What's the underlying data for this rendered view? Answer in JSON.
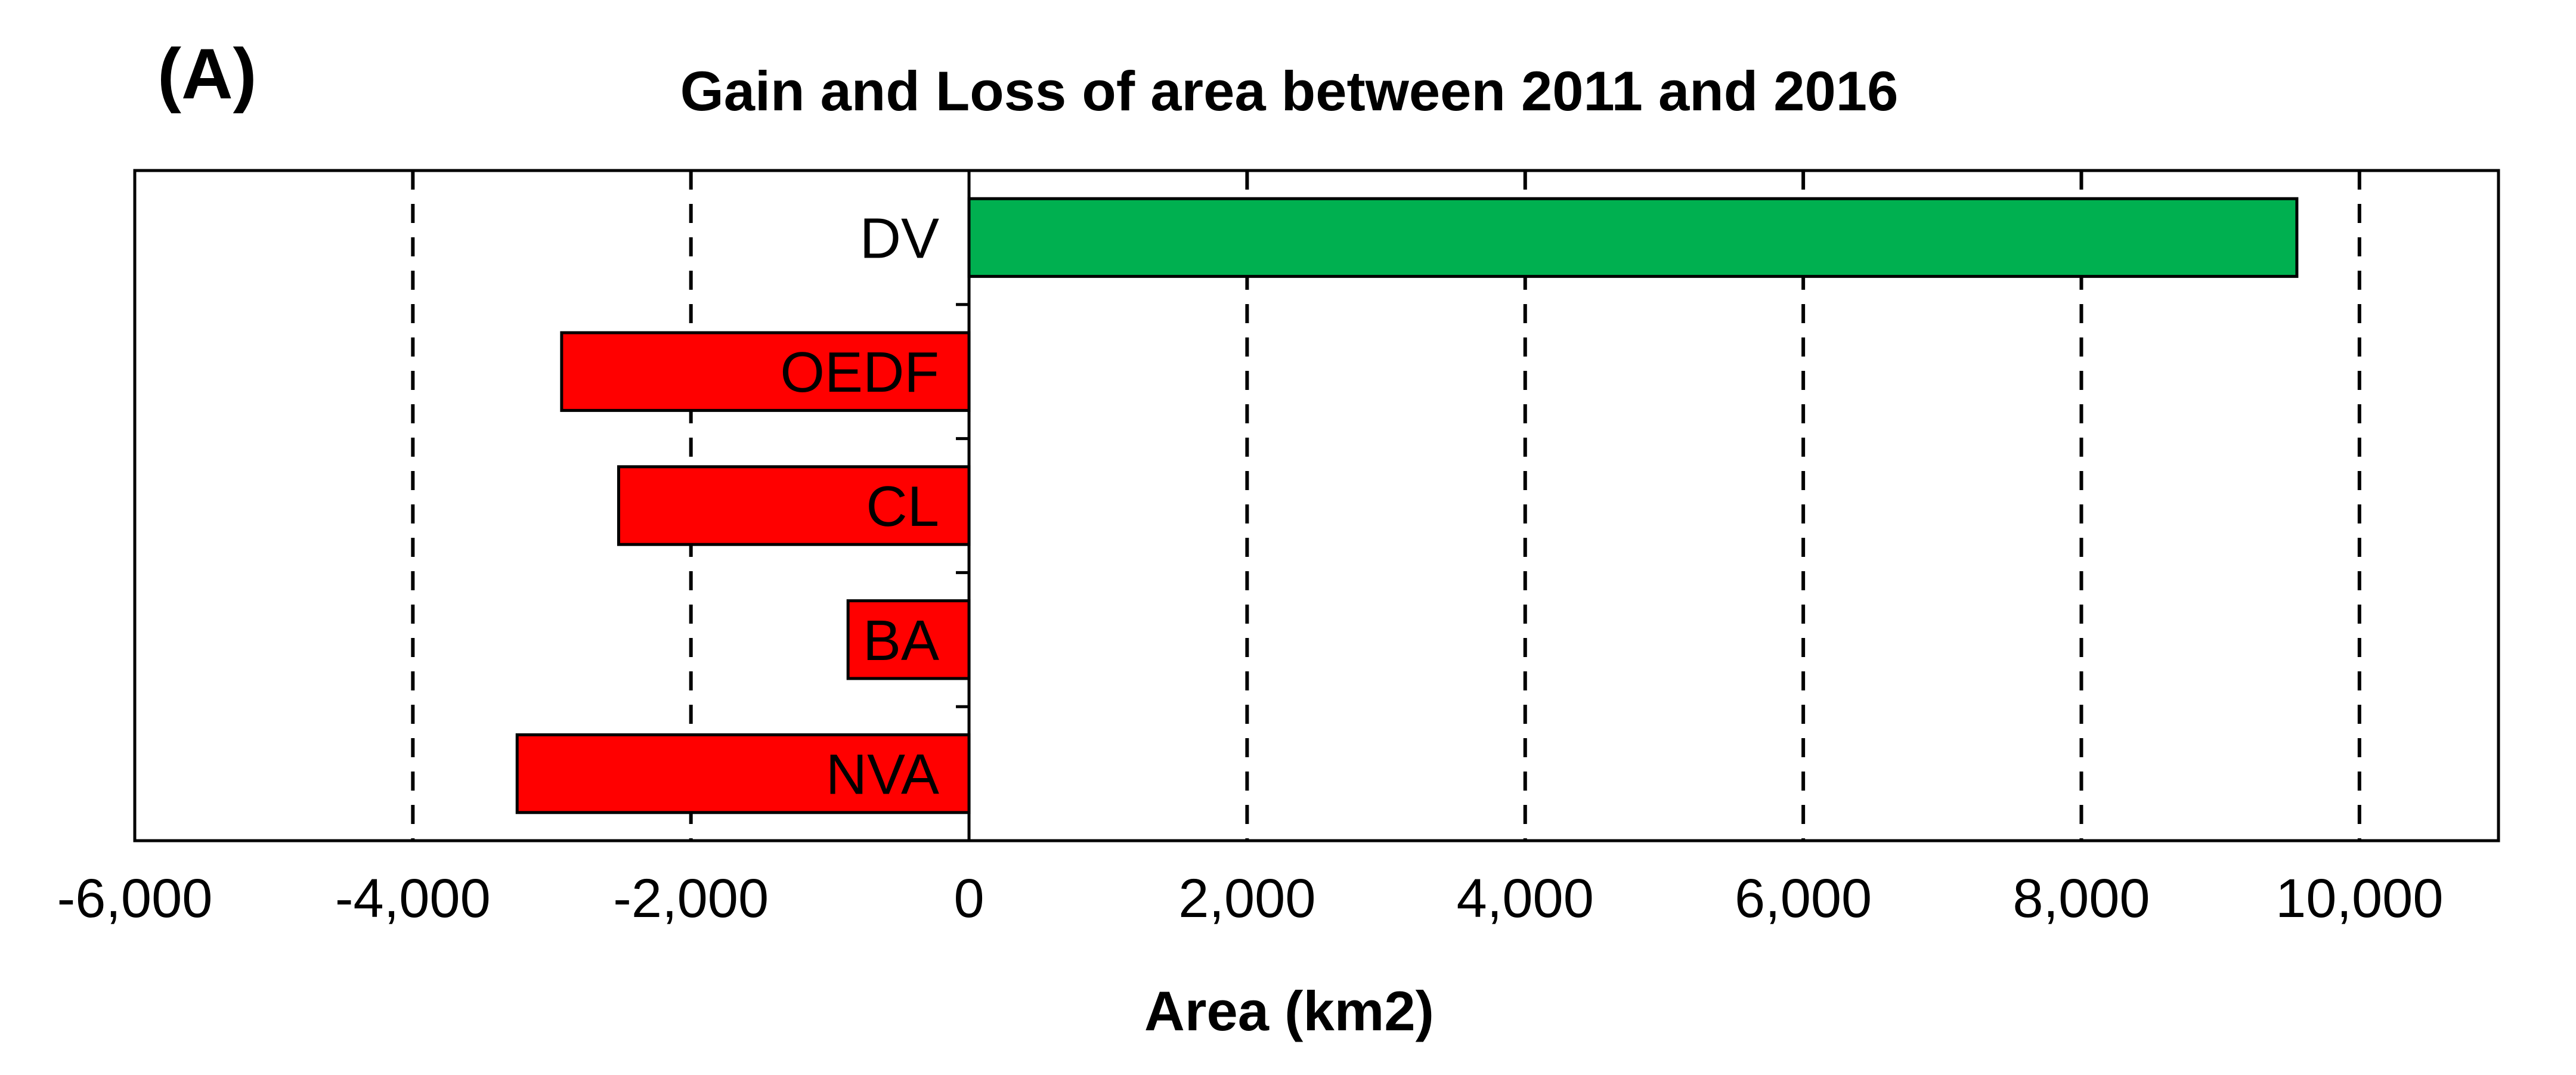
{
  "panel_label": "(A)",
  "chart_data": {
    "type": "bar",
    "orientation": "horizontal",
    "title": "Gain and Loss of area between 2011 and 2016",
    "xlabel": "Area (km2)",
    "ylabel": "",
    "xlim": [
      -6000,
      11000
    ],
    "xticks": [
      -6000,
      -4000,
      -2000,
      0,
      2000,
      4000,
      6000,
      8000,
      10000
    ],
    "xtick_labels": [
      "-6,000",
      "-4,000",
      "-2,000",
      "0",
      "2,000",
      "4,000",
      "6,000",
      "8,000",
      "10,000"
    ],
    "grid": "vertical dashed",
    "categories": [
      "DV",
      "OEDF",
      "CL",
      "BA",
      "NVA"
    ],
    "values": [
      9550,
      -2930,
      -2520,
      -870,
      -3250
    ],
    "colors": {
      "gain": "#00b050",
      "loss": "#ff0000"
    }
  }
}
